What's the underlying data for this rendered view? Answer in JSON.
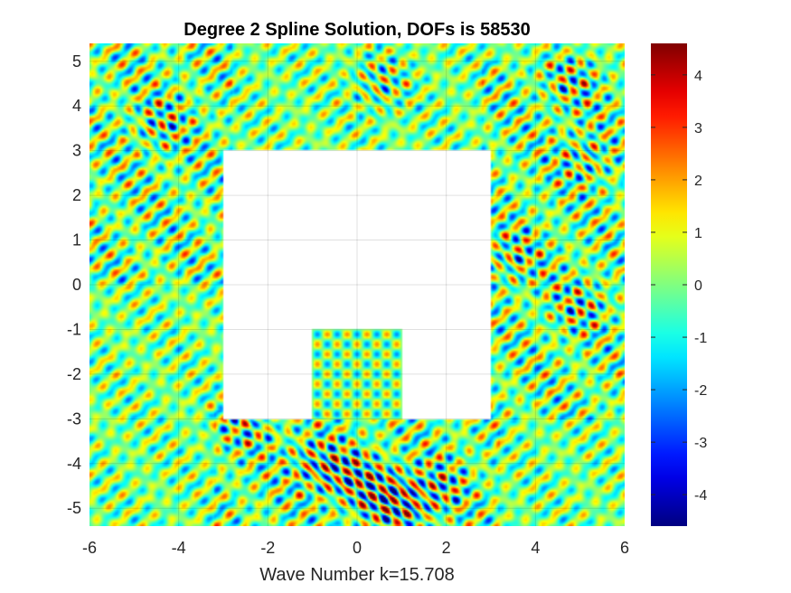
{
  "chart_data": {
    "type": "heatmap",
    "title": "Degree 2 Spline Solution, DOFs is 58530",
    "xlabel": "Wave Number k=15.708",
    "ylabel": "",
    "xlim": [
      -6,
      6
    ],
    "ylim": [
      -5.4,
      5.4
    ],
    "xticks": [
      -6,
      -4,
      -2,
      0,
      2,
      4,
      6
    ],
    "yticks": [
      -5,
      -4,
      -3,
      -2,
      -1,
      0,
      1,
      2,
      3,
      4,
      5
    ],
    "clim": [
      -4.6,
      4.6
    ],
    "colorbar_ticks": [
      -4,
      -3,
      -2,
      -1,
      0,
      1,
      2,
      3,
      4
    ],
    "colormap": "jet",
    "grid": true,
    "wave_number": 15.708,
    "excluded_regions": [
      {
        "x": [
          -3,
          3
        ],
        "y": [
          -3,
          3
        ]
      }
    ],
    "included_regions": [
      {
        "x": [
          -1,
          1
        ],
        "y": [
          -3,
          -1
        ]
      }
    ]
  }
}
